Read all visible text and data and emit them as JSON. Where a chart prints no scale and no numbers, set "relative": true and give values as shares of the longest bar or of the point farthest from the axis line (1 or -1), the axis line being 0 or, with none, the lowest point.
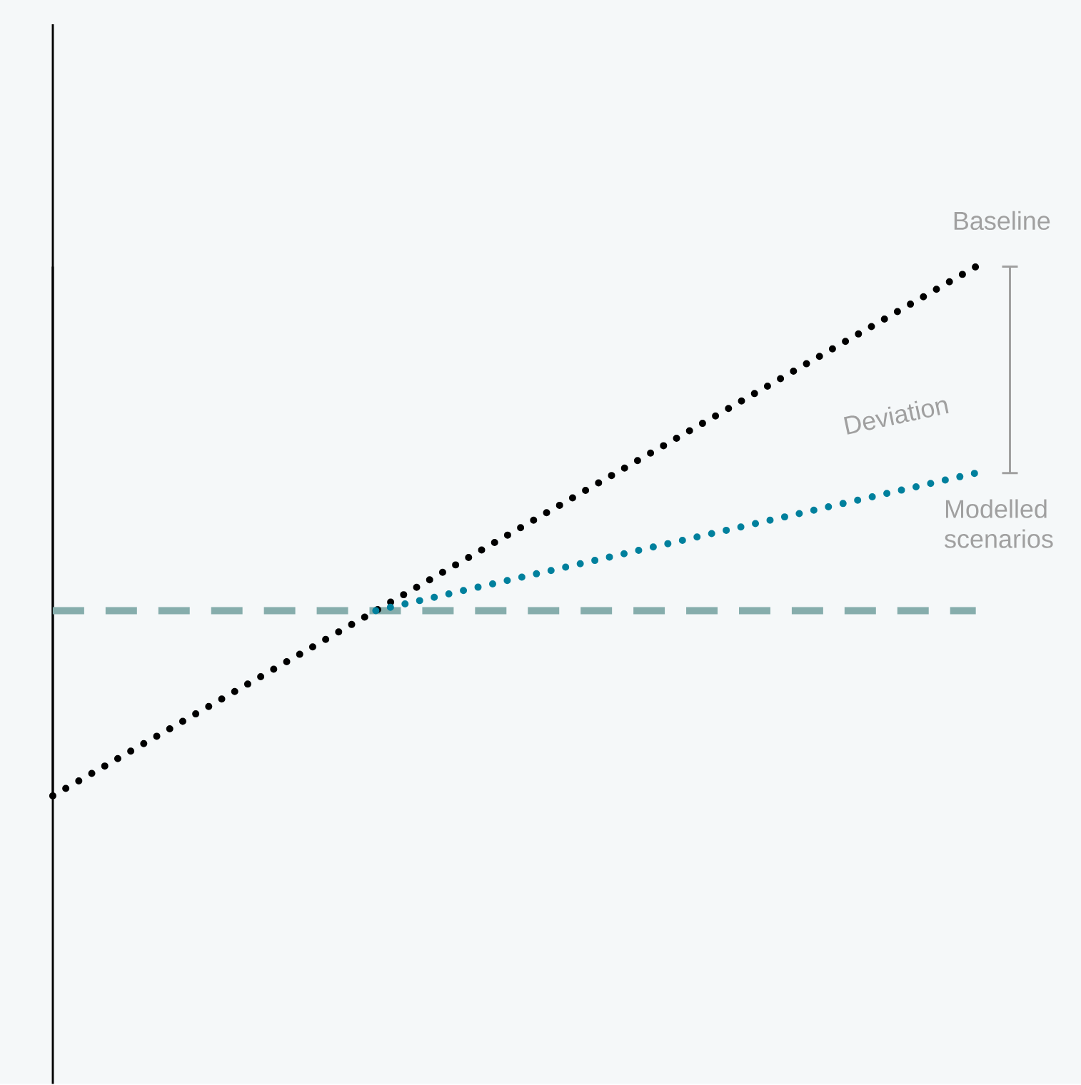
{
  "chart_data": {
    "type": "line",
    "relative": true,
    "line_style": "dotted",
    "categories": [
      null,
      null,
      null,
      null,
      null,
      null,
      null,
      null,
      null,
      null,
      null,
      null,
      null,
      null,
      null,
      null,
      null,
      null,
      null,
      null,
      null
    ],
    "series": [
      {
        "name": "Baseline",
        "color": "#000000",
        "values": [
          0,
          0.05,
          0.1,
          0.15,
          0.2,
          0.25,
          0.3,
          0.35,
          0.4,
          0.45,
          0.5,
          0.55,
          0.6,
          0.65,
          0.7,
          0.75,
          0.8,
          0.85,
          0.9,
          0.95,
          1
        ]
      },
      {
        "name": "Modelled scenarios",
        "color": "#00809d",
        "values": [
          null,
          null,
          null,
          null,
          null,
          null,
          null,
          0.35,
          0.37,
          0.39,
          0.41,
          0.43,
          0.45,
          0.47,
          0.49,
          0.51,
          0.53,
          0.55,
          0.57,
          0.59,
          0.61
        ]
      }
    ],
    "ref_lines": [
      {
        "axis": "y",
        "value": 0.35,
        "color": "#86adac",
        "line_style": "dashed"
      }
    ],
    "annotations": [
      "Deviation"
    ]
  }
}
